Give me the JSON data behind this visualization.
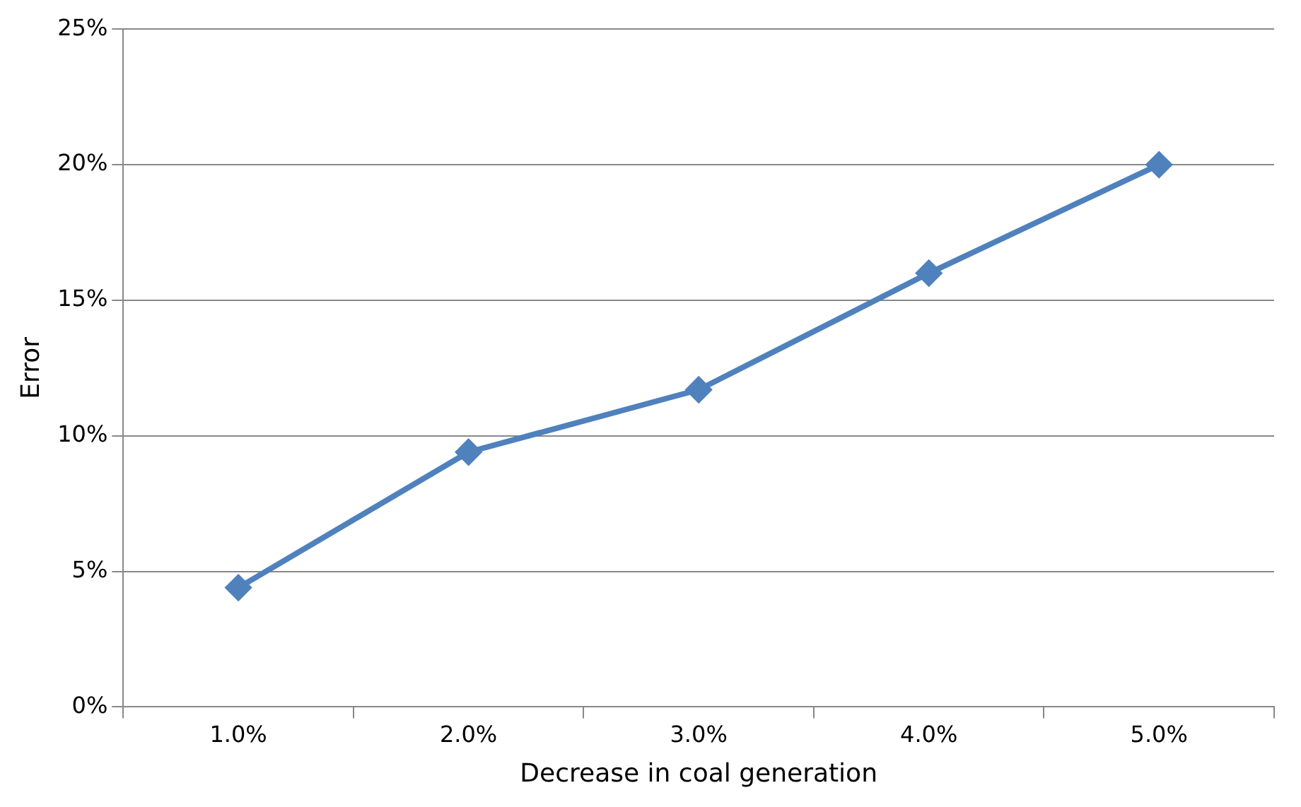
{
  "chart_data": {
    "type": "line",
    "xlabel": "Decrease in coal generation",
    "ylabel": "Error",
    "categories": [
      "1.0%",
      "2.0%",
      "3.0%",
      "4.0%",
      "5.0%"
    ],
    "series": [
      {
        "color": "#4f81bd",
        "values": [
          4.4,
          9.4,
          11.7,
          16.0,
          20.0
        ]
      }
    ],
    "ylim": [
      0,
      25
    ],
    "yticks": [
      {
        "value": 0,
        "label": "0%"
      },
      {
        "value": 5,
        "label": "5%"
      },
      {
        "value": 10,
        "label": "10%"
      },
      {
        "value": 15,
        "label": "15%"
      },
      {
        "value": 20,
        "label": "20%"
      },
      {
        "value": 25,
        "label": "25%"
      }
    ],
    "grid": "y",
    "legend": false,
    "marker": "diamond",
    "line_style": "solid"
  }
}
